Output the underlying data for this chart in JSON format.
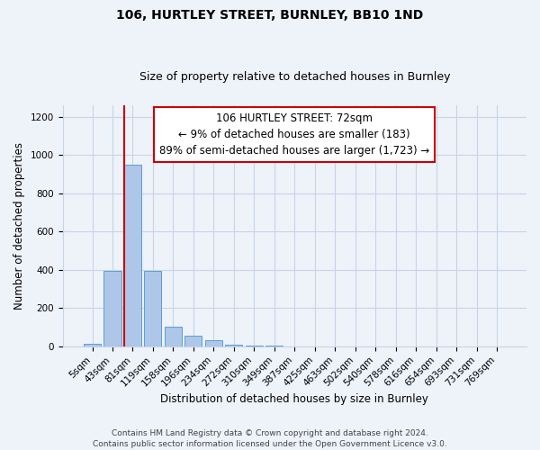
{
  "title": "106, HURTLEY STREET, BURNLEY, BB10 1ND",
  "subtitle": "Size of property relative to detached houses in Burnley",
  "xlabel": "Distribution of detached houses by size in Burnley",
  "ylabel": "Number of detached properties",
  "bar_labels": [
    "5sqm",
    "43sqm",
    "81sqm",
    "119sqm",
    "158sqm",
    "196sqm",
    "234sqm",
    "272sqm",
    "310sqm",
    "349sqm",
    "387sqm",
    "425sqm",
    "463sqm",
    "502sqm",
    "540sqm",
    "578sqm",
    "616sqm",
    "654sqm",
    "693sqm",
    "731sqm",
    "769sqm"
  ],
  "bar_values": [
    15,
    395,
    950,
    395,
    105,
    55,
    30,
    10,
    5,
    2,
    1,
    0,
    0,
    0,
    0,
    0,
    0,
    0,
    0,
    0,
    0
  ],
  "bar_color": "#aec6e8",
  "bar_edge_color": "#5a9fd4",
  "vline_x_idx": 2,
  "vline_color": "#cc0000",
  "ylim": [
    0,
    1260
  ],
  "yticks": [
    0,
    200,
    400,
    600,
    800,
    1000,
    1200
  ],
  "annotation_title": "106 HURTLEY STREET: 72sqm",
  "annotation_line1": "← 9% of detached houses are smaller (183)",
  "annotation_line2": "89% of semi-detached houses are larger (1,723) →",
  "annotation_box_color": "#ffffff",
  "annotation_box_edge": "#cc0000",
  "footer_line1": "Contains HM Land Registry data © Crown copyright and database right 2024.",
  "footer_line2": "Contains public sector information licensed under the Open Government Licence v3.0.",
  "background_color": "#eef2f9",
  "grid_color": "#c8d4e8",
  "title_fontsize": 10,
  "subtitle_fontsize": 9,
  "label_fontsize": 8.5,
  "tick_fontsize": 7.5,
  "annotation_fontsize": 8.5,
  "footer_fontsize": 6.5
}
